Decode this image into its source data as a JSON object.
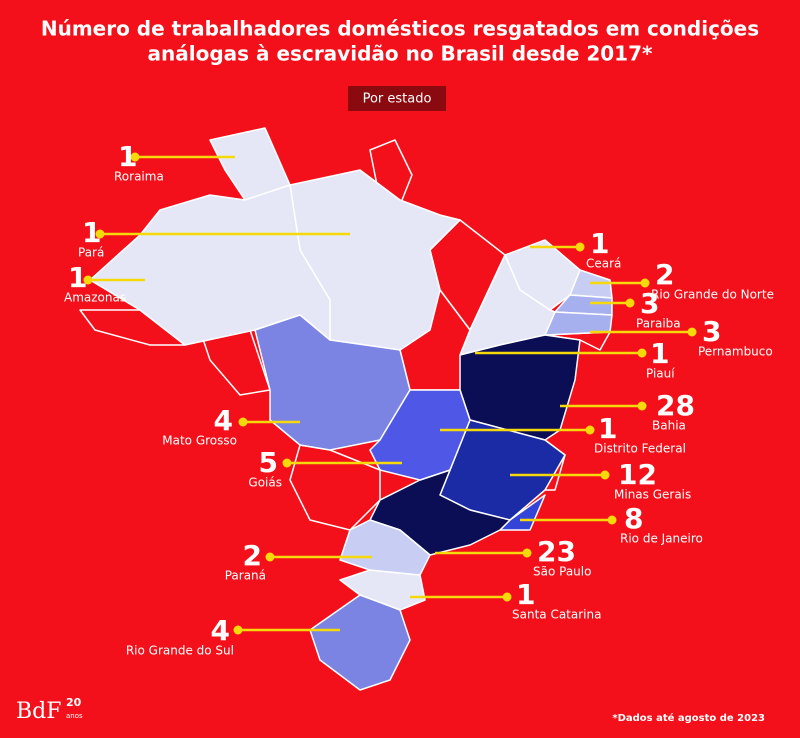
{
  "header": {
    "title": [
      "Número de trabalhadores domésticos resgatados em condições",
      "análogas à escravidão no Brasil desde 2017*"
    ],
    "subtitle": "Por estado"
  },
  "states": [
    {
      "name": "Roraima",
      "value": 1,
      "color": "#e6e7f6"
    },
    {
      "name": "Pará",
      "value": 1,
      "color": "#e6e7f6"
    },
    {
      "name": "Amazonas",
      "value": 1,
      "color": "#e6e7f6"
    },
    {
      "name": "Ceará",
      "value": 1,
      "color": "#e6e7f6"
    },
    {
      "name": "Rio Grande do Norte",
      "value": 2,
      "color": "#c8cdf3"
    },
    {
      "name": "Paraiba",
      "value": 3,
      "color": "#a7b0ee"
    },
    {
      "name": "Pernambuco",
      "value": 3,
      "color": "#a7b0ee"
    },
    {
      "name": "Piauí",
      "value": 1,
      "color": "#e6e7f6"
    },
    {
      "name": "Bahia",
      "value": 28,
      "color": "#0b0d55"
    },
    {
      "name": "Distrito Federal",
      "value": 1,
      "color": "#e6e7f6"
    },
    {
      "name": "Minas Gerais",
      "value": 12,
      "color": "#1b2aa5"
    },
    {
      "name": "Rio de Janeiro",
      "value": 8,
      "color": "#3443d8"
    },
    {
      "name": "São Paulo",
      "value": 23,
      "color": "#0b0d55"
    },
    {
      "name": "Santa Catarina",
      "value": 1,
      "color": "#e6e7f6"
    },
    {
      "name": "Mato Grosso",
      "value": 4,
      "color": "#7b83e3"
    },
    {
      "name": "Goiás",
      "value": 5,
      "color": "#4f57e6"
    },
    {
      "name": "Paraná",
      "value": 2,
      "color": "#c8cdf3"
    },
    {
      "name": "Rio Grande do Sul",
      "value": 4,
      "color": "#7b83e3"
    }
  ],
  "footnote": "*Dados até agosto de 2023",
  "logo": {
    "brand": "BdF",
    "years": "20",
    "word": "anos"
  }
}
